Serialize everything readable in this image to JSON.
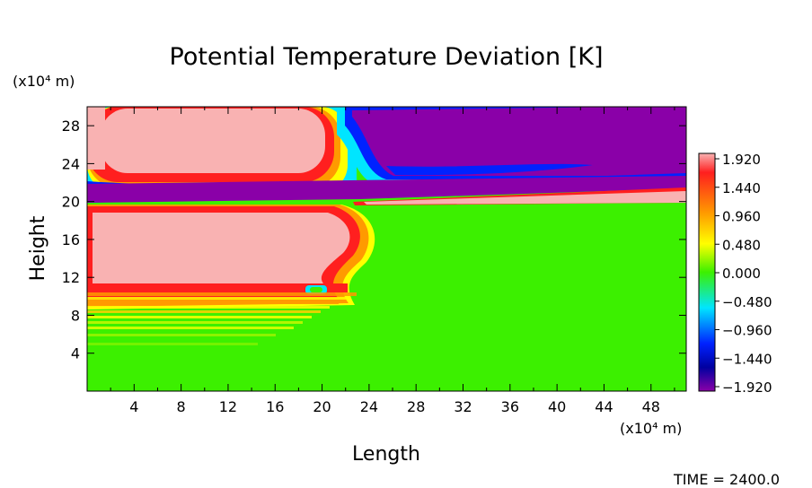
{
  "chart_data": {
    "type": "heatmap",
    "title": "Potential Temperature Deviation [K]",
    "xlabel": "Length",
    "ylabel": "Height",
    "x_unit_label": "(x10⁴ m)",
    "y_unit_label": "(x10⁴ m)",
    "xlim": [
      0,
      51
    ],
    "ylim": [
      0,
      30
    ],
    "x_ticks": [
      4,
      8,
      12,
      16,
      20,
      24,
      28,
      32,
      36,
      40,
      44,
      48
    ],
    "y_ticks": [
      4,
      8,
      12,
      16,
      20,
      24,
      28
    ],
    "x_tick_labels": [
      "4",
      "8",
      "12",
      "16",
      "20",
      "24",
      "28",
      "32",
      "36",
      "40",
      "44",
      "48"
    ],
    "y_tick_labels": [
      "4",
      "8",
      "12",
      "16",
      "20",
      "24",
      "28"
    ],
    "colorbar": {
      "min": -1.92,
      "max": 1.92,
      "labels": [
        "1.920",
        "1.440",
        "0.960",
        "0.480",
        "0.000",
        "−0.480",
        "−0.960",
        "−1.440",
        "−1.920"
      ]
    },
    "annotation": "TIME = 2400.0",
    "regions": [
      {
        "name": "upper warm anomaly",
        "x": [
          0,
          26
        ],
        "y": [
          22,
          30
        ],
        "value": 1.92
      },
      {
        "name": "upper cold anomaly",
        "x": [
          26,
          51
        ],
        "y": [
          21,
          30
        ],
        "value": -1.92
      },
      {
        "name": "cold layer",
        "x": [
          0,
          51
        ],
        "y": [
          19.5,
          22
        ],
        "value": -1.92
      },
      {
        "name": "lower warm anomaly",
        "x": [
          0,
          24
        ],
        "y": [
          10,
          19.5
        ],
        "value": 1.92
      },
      {
        "name": "background",
        "x": [
          0,
          51
        ],
        "y": [
          0,
          19.5
        ],
        "value": 0.0
      }
    ]
  },
  "colors": {
    "warm_max": "#F9B2B2",
    "red": "#FF1F1F",
    "orange": "#FF9A00",
    "yellow": "#FFFF00",
    "green": "#3CF000",
    "cyan": "#00E5FF",
    "blue": "#0000CC",
    "cold_max": "#8A00A8"
  }
}
